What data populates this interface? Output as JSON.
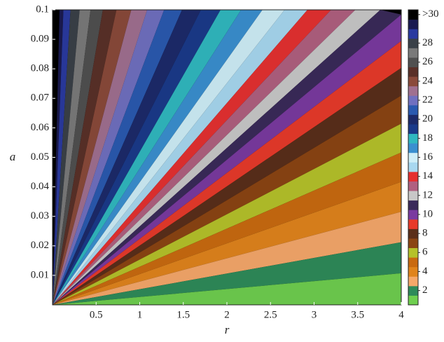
{
  "chart_data": {
    "type": "heatmap",
    "xlabel": "r",
    "ylabel": "a",
    "xlim": [
      0,
      4
    ],
    "ylim": [
      0,
      0.1
    ],
    "xticks": [
      0.5,
      1,
      1.5,
      2,
      2.5,
      3,
      3.5,
      4
    ],
    "yticks": [
      0.01,
      0.02,
      0.03,
      0.04,
      0.05,
      0.06,
      0.07,
      0.08,
      0.09,
      0.1
    ],
    "colorbar": {
      "lim": [
        0.5,
        31.5
      ],
      "ticks": [
        2,
        4,
        6,
        8,
        10,
        12,
        14,
        16,
        18,
        20,
        22,
        24,
        26,
        28,
        {
          "value": 31,
          "label": ">30"
        }
      ],
      "colors": [
        "#6fcf4f",
        "#2e8b5a",
        "#f5a86a",
        "#e0841c",
        "#c96a10",
        "#b5c22a",
        "#8b4513",
        "#5a2e1a",
        "#e83a2a",
        "#7a3aa0",
        "#3a2a5a",
        "#c8c8c8",
        "#b06080",
        "#e53030",
        "#a8d8f0",
        "#cfeef8",
        "#3a8fd0",
        "#30b8c0",
        "#1a3a8a",
        "#1c2a6a",
        "#2a5ab0",
        "#7070c0",
        "#a07090",
        "#8a4a3a",
        "#5a3028",
        "#505050",
        "#7a7a7a",
        "#3a4048",
        "#2a3aa0",
        "#1a1a50",
        "#000000"
      ]
    }
  }
}
